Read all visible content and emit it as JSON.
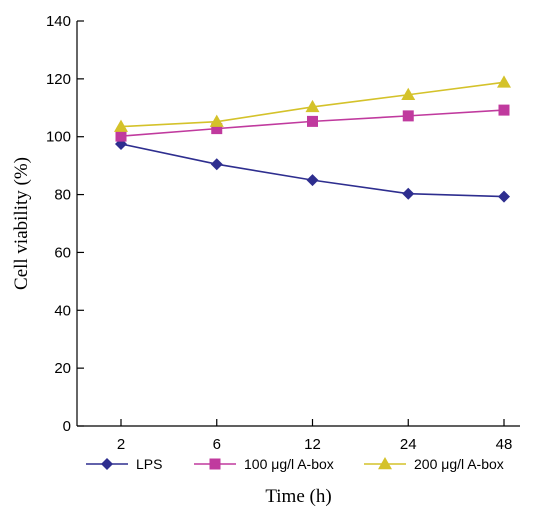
{
  "chart_data": {
    "type": "line",
    "categories": [
      "2",
      "6",
      "12",
      "24",
      "48"
    ],
    "xlabel": "Time (h)",
    "ylabel": "Cell viability (%)",
    "ylim": [
      0,
      140
    ],
    "yticks": [
      "0",
      "20",
      "40",
      "60",
      "80",
      "100",
      "120",
      "140"
    ],
    "grid": false,
    "legend_position": "bottom",
    "series": [
      {
        "name": "LPS",
        "color": "#2E2E8F",
        "marker": "diamond",
        "values": [
          97.5,
          90.5,
          85,
          80.3,
          79.3
        ]
      },
      {
        "name": "100 μg/l A-box",
        "color": "#C03A9E",
        "marker": "square",
        "values": [
          100.2,
          102.8,
          105.3,
          107.2,
          109.2
        ]
      },
      {
        "name": "200 μg/l A-box",
        "color": "#D4C22A",
        "marker": "triangle",
        "values": [
          103.5,
          105.2,
          110.3,
          114.5,
          118.8
        ]
      }
    ]
  }
}
